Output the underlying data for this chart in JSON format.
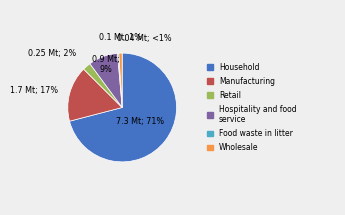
{
  "values": [
    7.3,
    1.7,
    0.25,
    0.9,
    0.04,
    0.1
  ],
  "colors": [
    "#4472C4",
    "#C0504D",
    "#9BBB59",
    "#8064A2",
    "#4BACC6",
    "#F79646"
  ],
  "legend_labels": [
    "Household",
    "Manufacturing",
    "Retail",
    "Hospitality and food\nservice",
    "Food waste in litter",
    "Wholesale"
  ],
  "label_texts": [
    "7.3 Mt; 71%",
    "1.7 Mt; 17%",
    "0.25 Mt; 2%",
    "0.9 Mt;\n9%",
    "0.04 Mt; <1%",
    "0.1 Mt; 1%"
  ],
  "background_color": "#EFEFEF",
  "startangle": 90,
  "label_fontsize": 5.8,
  "legend_fontsize": 5.5
}
